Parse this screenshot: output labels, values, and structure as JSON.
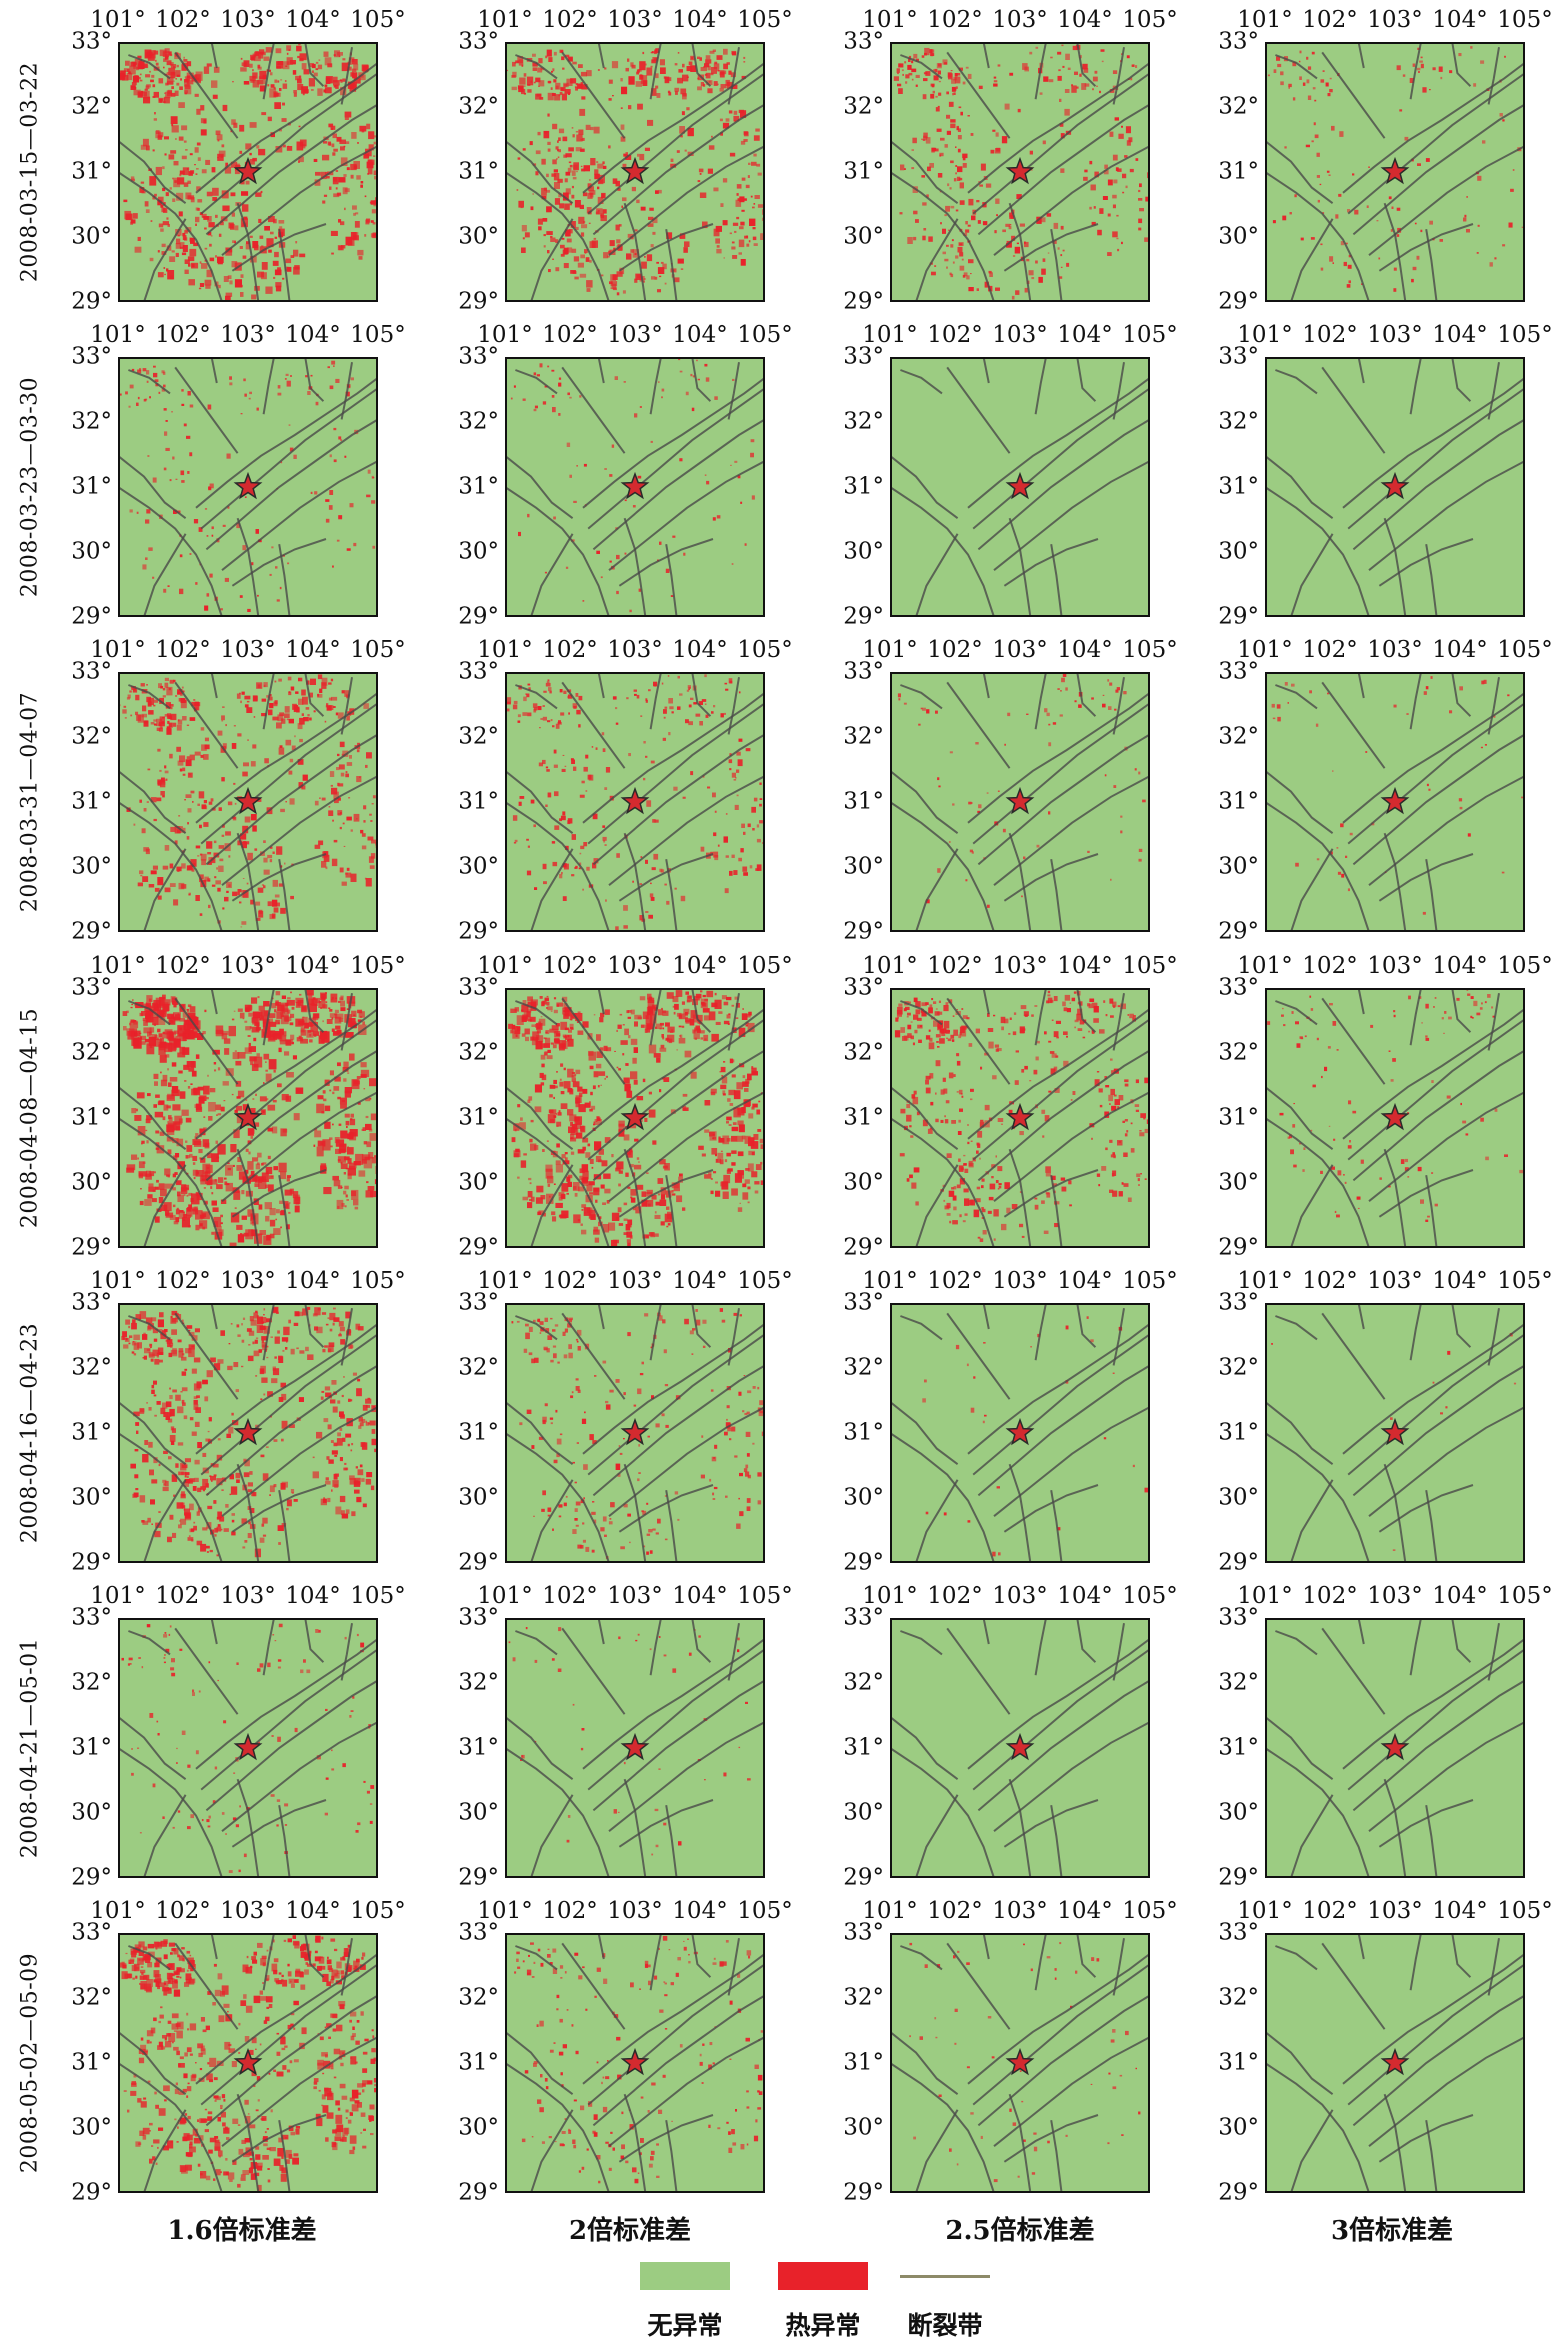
{
  "x_ticks": [
    "101°",
    "102°",
    "103°",
    "104°",
    "105°"
  ],
  "y_ticks": [
    "33°",
    "32°",
    "31°",
    "30°",
    "29°"
  ],
  "periods": [
    "2008-03-15—03-22",
    "2008-03-23—03-30",
    "2008-03-31—04-07",
    "2008-04-08—04-15",
    "2008-04-16—04-23",
    "2008-04-21—05-01",
    "2008-05-02—05-09"
  ],
  "thresholds": [
    "1.6倍标准差",
    "2倍标准差",
    "2.5倍标准差",
    "3倍标准差"
  ],
  "legend": {
    "no_anomaly": "无异常",
    "thermal_anomaly": "热异常",
    "fault_zone": "断裂带"
  },
  "map": {
    "lon_range": [
      101,
      105
    ],
    "lat_range": [
      29,
      33
    ],
    "epicenter": {
      "lon": 103.0,
      "lat": 31.0
    },
    "colors": {
      "no_anomaly": "#9ccc82",
      "thermal_anomaly": "#e8222a",
      "fault": "#4a4a48",
      "epicenter": "#d42a2f"
    },
    "intensity": [
      [
        0.75,
        0.6,
        0.4,
        0.15
      ],
      [
        0.18,
        0.1,
        0.0,
        0.0
      ],
      [
        0.55,
        0.3,
        0.08,
        0.05
      ],
      [
        1.0,
        0.8,
        0.45,
        0.12
      ],
      [
        0.6,
        0.25,
        0.03,
        0.01
      ],
      [
        0.12,
        0.05,
        0.0,
        0.0
      ],
      [
        0.7,
        0.2,
        0.06,
        0.0
      ]
    ]
  }
}
